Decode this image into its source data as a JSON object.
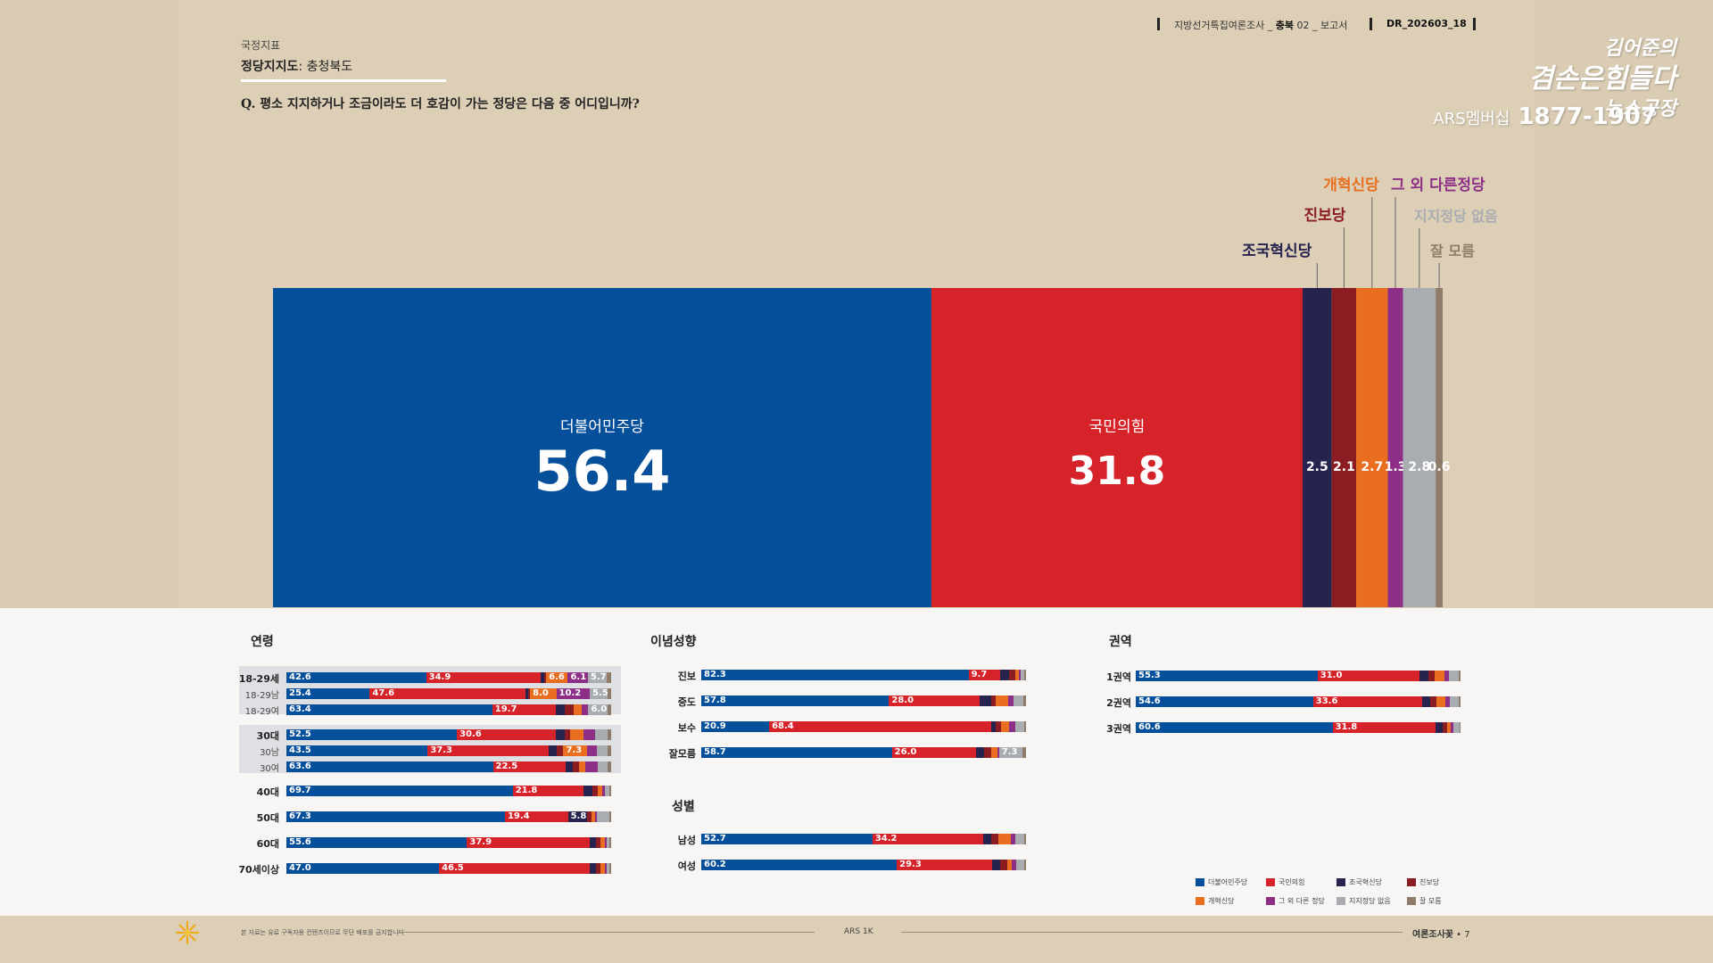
{
  "header": {
    "survey_label": "지방선거특집여론조사 _",
    "region": "충북",
    "issue": "02",
    "doc_type": "_ 보고서",
    "doc_id": "DR_202603_18"
  },
  "logo": {
    "line1": "김어준의",
    "line2": "겸손은힘들다",
    "line3": "뉴스공장",
    "ars_label": "ARS멤버십",
    "phone": "1877-1907"
  },
  "category": "국정지표",
  "title_bold": "정당지지도",
  "title_rest": ": 충청북도",
  "question": "Q. 평소 지지하거나 조금이라도 더 호감이 가는 정당은 다음 중 어디입니까?",
  "colors": {
    "democratic": "#064f9b",
    "ppp": "#d62229",
    "rebuild": "#26234f",
    "progressive": "#8a1c22",
    "reform": "#e96e1f",
    "other": "#8d2f86",
    "none": "#a9acb0",
    "unknown": "#8f7b6a"
  },
  "chart_data": [
    {
      "type": "bar",
      "stacked": true,
      "orientation": "horizontal-100",
      "title": "정당지지도: 충청북도",
      "series": [
        {
          "name": "더불어민주당",
          "value": 56.4,
          "color_key": "democratic"
        },
        {
          "name": "국민의힘",
          "value": 31.8,
          "color_key": "ppp"
        },
        {
          "name": "조국혁신당",
          "value": 2.5,
          "color_key": "rebuild"
        },
        {
          "name": "진보당",
          "value": 2.1,
          "color_key": "progressive"
        },
        {
          "name": "개혁신당",
          "value": 2.7,
          "color_key": "reform"
        },
        {
          "name": "그 외 다른정당",
          "value": 1.3,
          "color_key": "other"
        },
        {
          "name": "지지정당 없음",
          "value": 2.8,
          "color_key": "none"
        },
        {
          "name": "잘 모름",
          "value": 0.6,
          "color_key": "unknown"
        }
      ]
    },
    {
      "type": "bar",
      "stacked": true,
      "title": "연령",
      "party_order": [
        "democratic",
        "ppp",
        "rebuild",
        "progressive",
        "reform",
        "other",
        "none",
        "unknown"
      ],
      "rows": [
        {
          "label": "18-29세",
          "group": "18-29",
          "sub": false,
          "values": [
            42.6,
            34.9,
            1.2,
            0.5,
            6.6,
            6.1,
            5.7,
            1.4
          ],
          "labels": [
            "42.6",
            "34.9",
            "",
            "",
            "6.6",
            "6.1",
            "5.7",
            ""
          ]
        },
        {
          "label": "18-29남",
          "group": "18-29",
          "sub": true,
          "values": [
            25.4,
            47.6,
            0.8,
            0.5,
            8.0,
            10.2,
            5.5,
            1.0
          ],
          "labels": [
            "25.4",
            "47.6",
            "",
            "",
            "8.0",
            "10.2",
            "5.5",
            ""
          ]
        },
        {
          "label": "18-29여",
          "group": "18-29",
          "sub": true,
          "values": [
            63.4,
            19.7,
            2.5,
            3.0,
            2.4,
            2.0,
            6.0,
            1.0
          ],
          "labels": [
            "63.4",
            "19.7",
            "",
            "",
            "",
            "",
            "6.0",
            ""
          ]
        },
        {
          "label": "30대",
          "group": "30",
          "sub": false,
          "values": [
            52.5,
            30.6,
            2.5,
            1.8,
            4.2,
            3.4,
            3.8,
            1.2
          ],
          "labels": [
            "52.5",
            "30.6",
            "",
            "",
            "",
            "",
            "",
            ""
          ]
        },
        {
          "label": "30남",
          "group": "30",
          "sub": true,
          "values": [
            43.5,
            37.3,
            2.5,
            2.0,
            7.3,
            3.0,
            3.4,
            1.0
          ],
          "labels": [
            "43.5",
            "37.3",
            "",
            "",
            "7.3",
            "",
            "",
            ""
          ]
        },
        {
          "label": "30여",
          "group": "30",
          "sub": true,
          "values": [
            63.6,
            22.5,
            2.0,
            2.0,
            2.0,
            3.9,
            3.0,
            1.0
          ],
          "labels": [
            "63.6",
            "22.5",
            "",
            "",
            "",
            "",
            "",
            ""
          ]
        },
        {
          "label": "40대",
          "group": "40",
          "sub": false,
          "values": [
            69.7,
            21.8,
            2.6,
            1.9,
            1.2,
            0.8,
            1.5,
            0.5
          ],
          "labels": [
            "69.7",
            "21.8",
            "",
            "",
            "",
            "",
            "",
            ""
          ]
        },
        {
          "label": "50대",
          "group": "50",
          "sub": false,
          "values": [
            67.3,
            19.4,
            5.8,
            1.5,
            1.0,
            0.5,
            3.9,
            0.6
          ],
          "labels": [
            "67.3",
            "19.4",
            "5.8",
            "",
            "",
            "",
            "",
            ""
          ]
        },
        {
          "label": "60대",
          "group": "60",
          "sub": false,
          "values": [
            55.6,
            37.9,
            1.8,
            1.5,
            1.2,
            0.5,
            1.0,
            0.5
          ],
          "labels": [
            "55.6",
            "37.9",
            "",
            "",
            "",
            "",
            "",
            ""
          ]
        },
        {
          "label": "70세이상",
          "group": "70",
          "sub": false,
          "values": [
            47.0,
            46.5,
            1.8,
            1.3,
            1.5,
            0.6,
            0.8,
            0.5
          ],
          "labels": [
            "47.0",
            "46.5",
            "",
            "",
            "",
            "",
            "",
            ""
          ]
        }
      ]
    },
    {
      "type": "bar",
      "stacked": true,
      "title": "이념성향",
      "party_order": [
        "democratic",
        "ppp",
        "rebuild",
        "progressive",
        "reform",
        "other",
        "none",
        "unknown"
      ],
      "rows": [
        {
          "label": "진보",
          "values": [
            82.3,
            9.7,
            2.8,
            2.0,
            1.0,
            0.7,
            1.0,
            0.5
          ],
          "labels": [
            "82.3",
            "9.7",
            "",
            "",
            "",
            "",
            "",
            ""
          ]
        },
        {
          "label": "중도",
          "values": [
            57.8,
            28.0,
            3.6,
            1.2,
            4.0,
            1.5,
            3.2,
            0.7
          ],
          "labels": [
            "57.8",
            "28.0",
            "",
            "",
            "",
            "",
            "",
            ""
          ]
        },
        {
          "label": "보수",
          "values": [
            20.9,
            68.4,
            1.5,
            1.5,
            2.5,
            2.0,
            2.7,
            0.5
          ],
          "labels": [
            "20.9",
            "68.4",
            "",
            "",
            "",
            "",
            "",
            ""
          ]
        },
        {
          "label": "잘모름",
          "values": [
            58.7,
            26.0,
            2.5,
            2.0,
            2.0,
            0.5,
            7.3,
            1.0
          ],
          "labels": [
            "58.7",
            "26.0",
            "",
            "",
            "",
            "",
            "7.3",
            ""
          ]
        }
      ]
    },
    {
      "type": "bar",
      "stacked": true,
      "title": "성별",
      "party_order": [
        "democratic",
        "ppp",
        "rebuild",
        "progressive",
        "reform",
        "other",
        "none",
        "unknown"
      ],
      "rows": [
        {
          "label": "남성",
          "values": [
            52.7,
            34.2,
            2.5,
            2.0,
            4.0,
            1.3,
            2.8,
            0.5
          ],
          "labels": [
            "52.7",
            "34.2",
            "",
            "",
            "",
            "",
            "",
            ""
          ]
        },
        {
          "label": "여성",
          "values": [
            60.2,
            29.3,
            2.5,
            2.2,
            1.5,
            1.3,
            2.5,
            0.5
          ],
          "labels": [
            "60.2",
            "29.3",
            "",
            "",
            "",
            "",
            "",
            ""
          ]
        }
      ]
    },
    {
      "type": "bar",
      "stacked": true,
      "title": "권역",
      "party_order": [
        "democratic",
        "ppp",
        "rebuild",
        "progressive",
        "reform",
        "other",
        "none",
        "unknown"
      ],
      "rows": [
        {
          "label": "1권역",
          "values": [
            55.3,
            31.0,
            2.6,
            2.1,
            3.0,
            1.3,
            2.9,
            0.6
          ],
          "labels": [
            "55.3",
            "31.0",
            "",
            "",
            "",
            "",
            "",
            ""
          ]
        },
        {
          "label": "2권역",
          "values": [
            54.6,
            33.6,
            2.4,
            2.1,
            2.5,
            1.4,
            2.8,
            0.6
          ],
          "labels": [
            "54.6",
            "33.6",
            "",
            "",
            "",
            "",
            "",
            ""
          ]
        },
        {
          "label": "3권역",
          "values": [
            60.6,
            31.8,
            2.0,
            1.6,
            0.9,
            1.0,
            1.8,
            0.3
          ],
          "labels": [
            "60.6",
            "31.8",
            "",
            "",
            "",
            "",
            "",
            ""
          ]
        }
      ]
    }
  ],
  "legend": [
    {
      "name": "더불어민주당",
      "color_key": "democratic"
    },
    {
      "name": "국민의힘",
      "color_key": "ppp"
    },
    {
      "name": "조국혁신당",
      "color_key": "rebuild"
    },
    {
      "name": "진보당",
      "color_key": "progressive"
    },
    {
      "name": "개혁신당",
      "color_key": "reform"
    },
    {
      "name": "그 외 다른 정당",
      "color_key": "other"
    },
    {
      "name": "지지정당 없음",
      "color_key": "none"
    },
    {
      "name": "잘 모름",
      "color_key": "unknown"
    }
  ],
  "footer": {
    "note": "본 자료는 유료 구독자용 컨텐츠이므로 무단 배포를 금지합니다",
    "center": "ARS 1K",
    "right_label": "여론조사꽃",
    "page": "7"
  }
}
